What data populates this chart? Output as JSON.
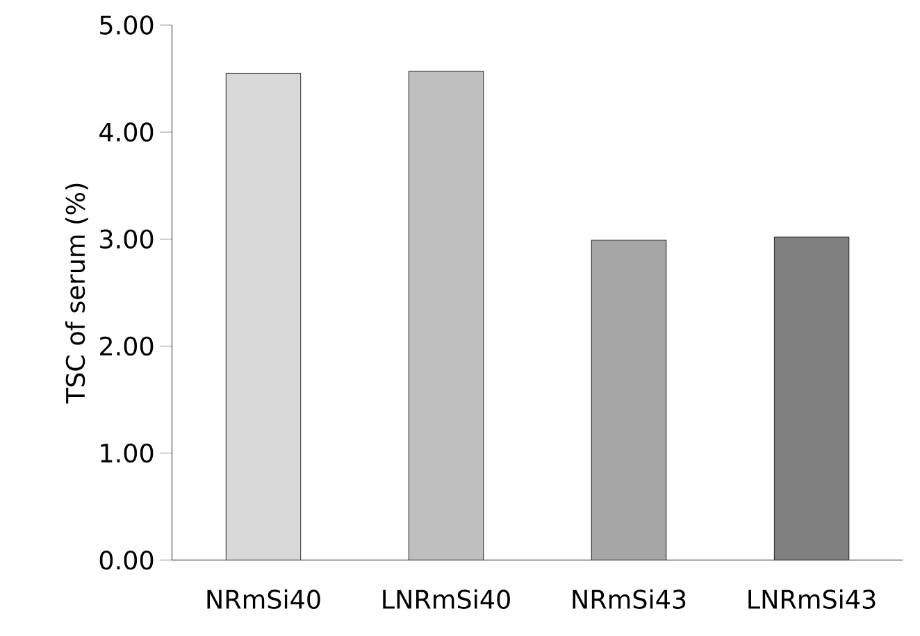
{
  "chart_data": {
    "type": "bar",
    "ylabel": "TSC of serum (%)",
    "categories": [
      "NRmSi40",
      "LNRmSi40",
      "NRmSi43",
      "LNRmSi43"
    ],
    "values": [
      4.55,
      4.57,
      2.99,
      3.02
    ],
    "colors": [
      "#d9d9d9",
      "#bfbfbf",
      "#a6a6a6",
      "#808080"
    ],
    "ylim": [
      0,
      5
    ],
    "yticks": [
      {
        "value": 0,
        "label": "0.00"
      },
      {
        "value": 1,
        "label": "1.00"
      },
      {
        "value": 2,
        "label": "2.00"
      },
      {
        "value": 3,
        "label": "3.00"
      },
      {
        "value": 4,
        "label": "4.00"
      },
      {
        "value": 5,
        "label": "5.00"
      }
    ],
    "grid": false
  }
}
